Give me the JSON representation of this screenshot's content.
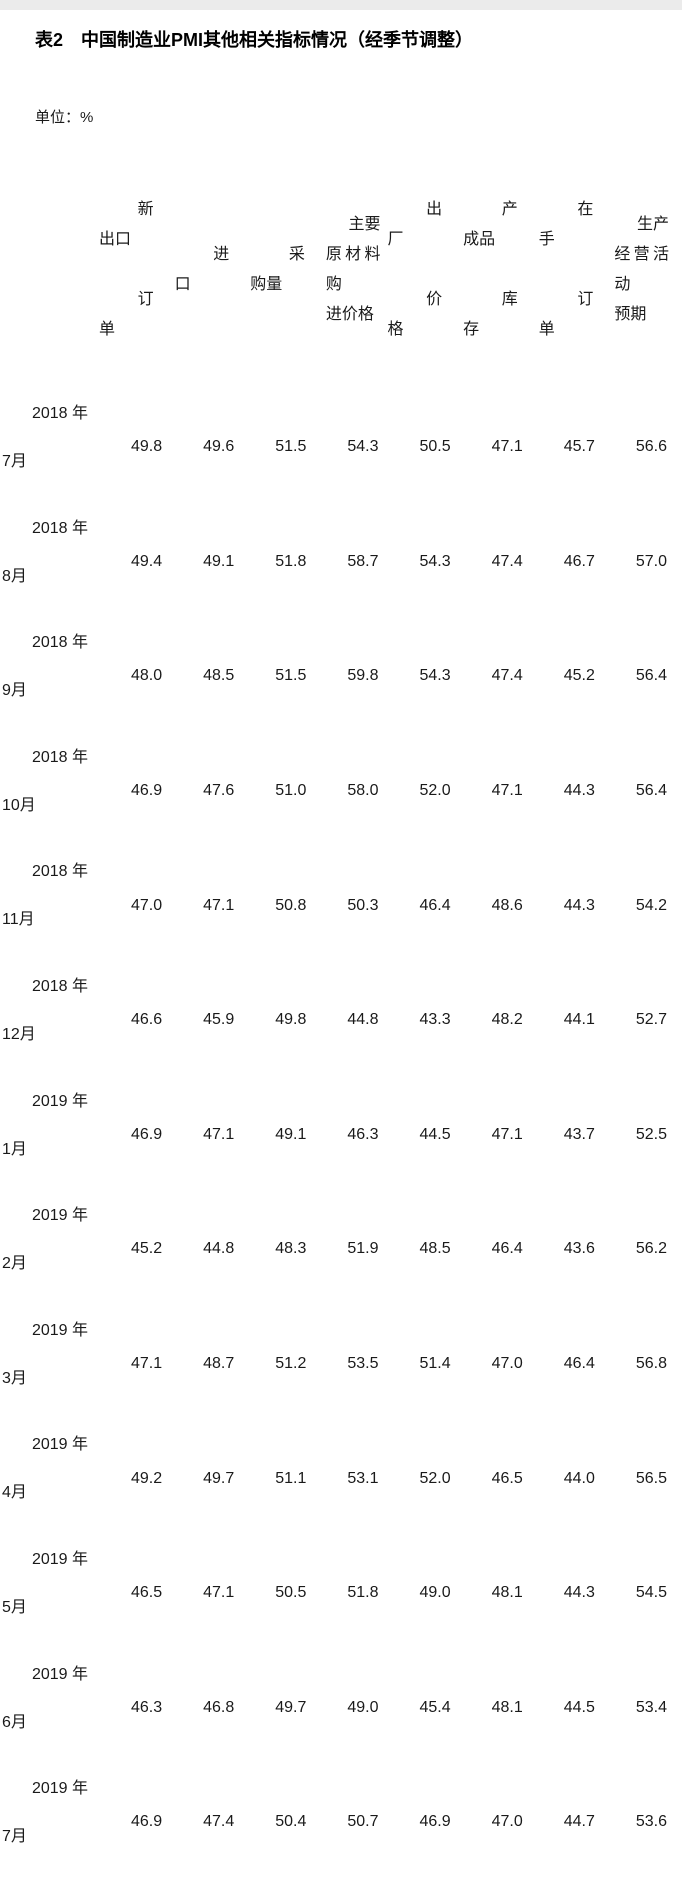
{
  "page": {
    "title": "表2　中国制造业PMI其他相关指标情况（经季节调整）",
    "unit_label": "单位：%"
  },
  "table": {
    "columns": [
      {
        "id": "new-export-orders",
        "label": "新出口订单",
        "lines": [
          "新",
          "出口",
          "",
          "订",
          "单"
        ],
        "aligns": [
          "r",
          "l",
          "l",
          "r",
          "l"
        ]
      },
      {
        "id": "imports",
        "label": "进口",
        "lines": [
          "进",
          "口"
        ],
        "aligns": [
          "r",
          "l"
        ]
      },
      {
        "id": "purchasing-volume",
        "label": "采购量",
        "lines": [
          "采",
          "购量"
        ],
        "aligns": [
          "r",
          "l"
        ]
      },
      {
        "id": "input-purchase-prices",
        "label": "主要原材料购进价格",
        "lines": [
          "主要",
          "原材料购",
          "进价格"
        ],
        "aligns": [
          "r",
          "j",
          "l"
        ]
      },
      {
        "id": "ex-factory-prices",
        "label": "出厂价格",
        "lines": [
          "出",
          "厂",
          "",
          "价",
          "格"
        ],
        "aligns": [
          "r",
          "l",
          "l",
          "r",
          "l"
        ]
      },
      {
        "id": "finished-goods-inventory",
        "label": "产成品库存",
        "lines": [
          "产",
          "成品",
          "",
          "库",
          "存"
        ],
        "aligns": [
          "r",
          "l",
          "l",
          "r",
          "l"
        ]
      },
      {
        "id": "backlog-of-orders",
        "label": "在手订单",
        "lines": [
          "在",
          "手",
          "",
          "订",
          "单"
        ],
        "aligns": [
          "r",
          "l",
          "l",
          "r",
          "l"
        ]
      },
      {
        "id": "business-activity-expectations",
        "label": "生产经营活动预期",
        "lines": [
          "生产",
          "经营活动",
          "预期"
        ],
        "aligns": [
          "r",
          "j",
          "l"
        ]
      }
    ],
    "rows": [
      {
        "year": "2018 年",
        "month": "7月",
        "values": [
          "49.8",
          "49.6",
          "51.5",
          "54.3",
          "50.5",
          "47.1",
          "45.7",
          "56.6"
        ]
      },
      {
        "year": "2018 年",
        "month": "8月",
        "values": [
          "49.4",
          "49.1",
          "51.8",
          "58.7",
          "54.3",
          "47.4",
          "46.7",
          "57.0"
        ]
      },
      {
        "year": "2018 年",
        "month": "9月",
        "values": [
          "48.0",
          "48.5",
          "51.5",
          "59.8",
          "54.3",
          "47.4",
          "45.2",
          "56.4"
        ]
      },
      {
        "year": "2018 年",
        "month": "10月",
        "values": [
          "46.9",
          "47.6",
          "51.0",
          "58.0",
          "52.0",
          "47.1",
          "44.3",
          "56.4"
        ]
      },
      {
        "year": "2018 年",
        "month": "11月",
        "values": [
          "47.0",
          "47.1",
          "50.8",
          "50.3",
          "46.4",
          "48.6",
          "44.3",
          "54.2"
        ]
      },
      {
        "year": "2018 年",
        "month": "12月",
        "values": [
          "46.6",
          "45.9",
          "49.8",
          "44.8",
          "43.3",
          "48.2",
          "44.1",
          "52.7"
        ]
      },
      {
        "year": "2019 年",
        "month": "1月",
        "values": [
          "46.9",
          "47.1",
          "49.1",
          "46.3",
          "44.5",
          "47.1",
          "43.7",
          "52.5"
        ]
      },
      {
        "year": "2019 年",
        "month": "2月",
        "values": [
          "45.2",
          "44.8",
          "48.3",
          "51.9",
          "48.5",
          "46.4",
          "43.6",
          "56.2"
        ]
      },
      {
        "year": "2019 年",
        "month": "3月",
        "values": [
          "47.1",
          "48.7",
          "51.2",
          "53.5",
          "51.4",
          "47.0",
          "46.4",
          "56.8"
        ]
      },
      {
        "year": "2019 年",
        "month": "4月",
        "values": [
          "49.2",
          "49.7",
          "51.1",
          "53.1",
          "52.0",
          "46.5",
          "44.0",
          "56.5"
        ]
      },
      {
        "year": "2019 年",
        "month": "5月",
        "values": [
          "46.5",
          "47.1",
          "50.5",
          "51.8",
          "49.0",
          "48.1",
          "44.3",
          "54.5"
        ]
      },
      {
        "year": "2019 年",
        "month": "6月",
        "values": [
          "46.3",
          "46.8",
          "49.7",
          "49.0",
          "45.4",
          "48.1",
          "44.5",
          "53.4"
        ]
      },
      {
        "year": "2019 年",
        "month": "7月",
        "values": [
          "46.9",
          "47.4",
          "50.4",
          "50.7",
          "46.9",
          "47.0",
          "44.7",
          "53.6"
        ]
      }
    ]
  }
}
